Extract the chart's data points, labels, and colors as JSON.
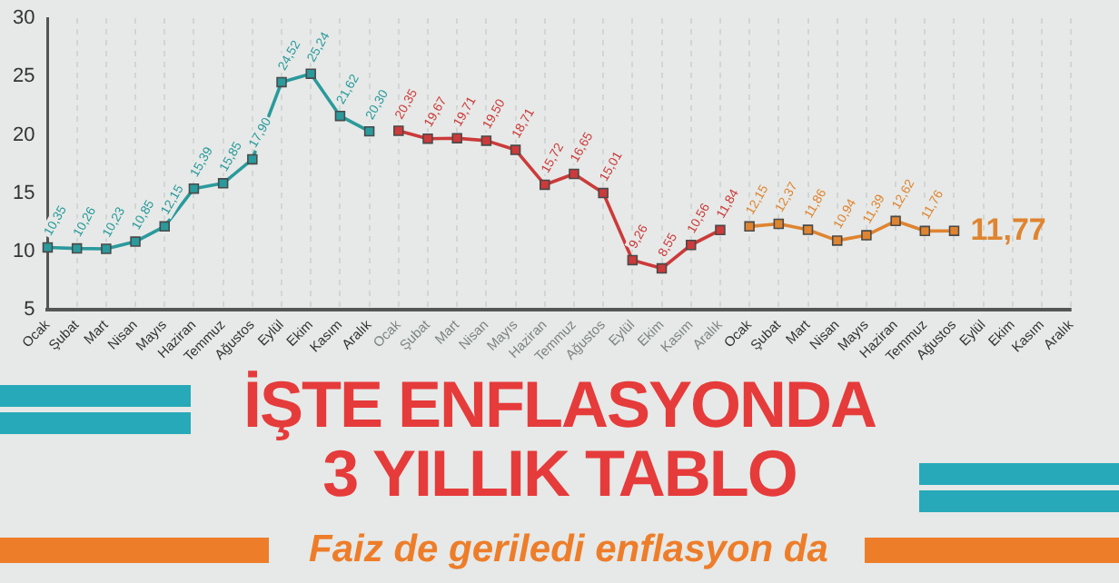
{
  "chart_data": {
    "type": "line",
    "title": "İŞTE ENFLASYONDA 3 YILLIK TABLO",
    "subtitle": "Faiz de geriledi enflasyon da",
    "categories": [
      "Ocak",
      "Şubat",
      "Mart",
      "Nisan",
      "Mayıs",
      "Haziran",
      "Temmuz",
      "Ağustos",
      "Eylül",
      "Ekim",
      "Kasım",
      "Aralık",
      "Ocak",
      "Şubat",
      "Mart",
      "Nisan",
      "Mayıs",
      "Haziran",
      "Temmuz",
      "Ağustos",
      "Eylül",
      "Ekim",
      "Kasım",
      "Aralık",
      "Ocak",
      "Şubat",
      "Mart",
      "Nisan",
      "Mayıs",
      "Haziran",
      "Temmuz",
      "Ağustos",
      "Eylül",
      "Ekim",
      "Kasım",
      "Aralık"
    ],
    "series": [
      {
        "color": "#2a9a9c",
        "values": [
          10.35,
          10.26,
          10.23,
          10.85,
          12.15,
          15.39,
          15.85,
          17.9,
          24.52,
          25.24,
          21.62,
          20.3,
          null,
          null,
          null,
          null,
          null,
          null,
          null,
          null,
          null,
          null,
          null,
          null,
          null,
          null,
          null,
          null,
          null,
          null,
          null,
          null,
          null,
          null,
          null,
          null
        ],
        "value_labels": [
          "10,35",
          "10,26",
          "10,23",
          "10,85",
          "12,15",
          "15,39",
          "15,85",
          "17,90",
          "24,52",
          "25,24",
          "21,62",
          "20,30",
          null,
          null,
          null,
          null,
          null,
          null,
          null,
          null,
          null,
          null,
          null,
          null,
          null,
          null,
          null,
          null,
          null,
          null,
          null,
          null,
          null,
          null,
          null,
          null
        ]
      },
      {
        "color": "#cc3a3a",
        "values": [
          null,
          null,
          null,
          null,
          null,
          null,
          null,
          null,
          null,
          null,
          null,
          null,
          20.35,
          19.67,
          19.71,
          19.5,
          18.71,
          15.72,
          16.65,
          15.01,
          9.26,
          8.55,
          10.56,
          11.84,
          null,
          null,
          null,
          null,
          null,
          null,
          null,
          null,
          null,
          null,
          null,
          null
        ],
        "value_labels": [
          null,
          null,
          null,
          null,
          null,
          null,
          null,
          null,
          null,
          null,
          null,
          null,
          "20,35",
          "19,67",
          "19,71",
          "19,50",
          "18,71",
          "15,72",
          "16,65",
          "15,01",
          "9,26",
          "8,55",
          "10,56",
          "11,84",
          null,
          null,
          null,
          null,
          null,
          null,
          null,
          null,
          null,
          null,
          null,
          null
        ]
      },
      {
        "color": "#df8431",
        "values": [
          null,
          null,
          null,
          null,
          null,
          null,
          null,
          null,
          null,
          null,
          null,
          null,
          null,
          null,
          null,
          null,
          null,
          null,
          null,
          null,
          null,
          null,
          null,
          null,
          12.15,
          12.37,
          11.86,
          10.94,
          11.39,
          12.62,
          11.76,
          11.77,
          null,
          null,
          null,
          null
        ],
        "value_labels": [
          null,
          null,
          null,
          null,
          null,
          null,
          null,
          null,
          null,
          null,
          null,
          null,
          null,
          null,
          null,
          null,
          null,
          null,
          null,
          null,
          null,
          null,
          null,
          null,
          "12,15",
          "12,37",
          "11,86",
          "10,94",
          "11,39",
          "12,62",
          "11,76",
          "11,77",
          null,
          null,
          null,
          null
        ]
      }
    ],
    "ylim": [
      5,
      30
    ],
    "yticks": [
      5,
      10,
      15,
      20,
      25,
      30
    ],
    "grid": "x",
    "marker": "square",
    "line_style": "solid",
    "legend": false
  }
}
